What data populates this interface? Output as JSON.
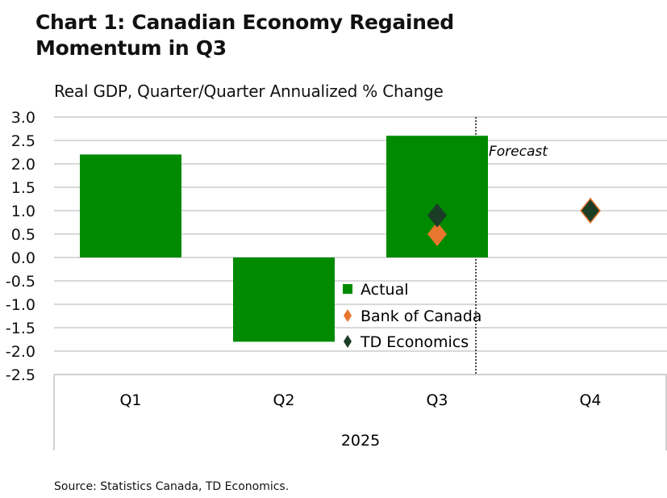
{
  "title": "Chart 1: Canadian Economy Regained Momentum in Q3",
  "subtitle": "Real GDP, Quarter/Quarter Annualized % Change",
  "source": "Source: Statistics Canada, TD Economics.",
  "chart_data": {
    "type": "bar",
    "categories": [
      "Q1",
      "Q2",
      "Q3",
      "Q4"
    ],
    "group_label": "2025",
    "ylim": [
      -2.5,
      3.0
    ],
    "yticks": [
      "3.0",
      "2.5",
      "2.0",
      "1.5",
      "1.0",
      "0.5",
      "0.0",
      "-0.5",
      "-1.0",
      "-1.5",
      "-2.0",
      "-2.5"
    ],
    "grid": true,
    "legend_position": "center",
    "annotation": "Forecast",
    "series": [
      {
        "name": "Actual",
        "type": "bar",
        "color": "#008A00",
        "values": [
          2.2,
          -1.8,
          2.6,
          null
        ]
      },
      {
        "name": "Bank of Canada",
        "type": "scatter",
        "marker": "diamond",
        "color": "#E8762D",
        "values": [
          null,
          null,
          0.5,
          1.0
        ]
      },
      {
        "name": "TD Economics",
        "type": "scatter",
        "marker": "diamond",
        "color": "#1B3D26",
        "values": [
          null,
          null,
          0.9,
          1.0
        ]
      }
    ]
  }
}
